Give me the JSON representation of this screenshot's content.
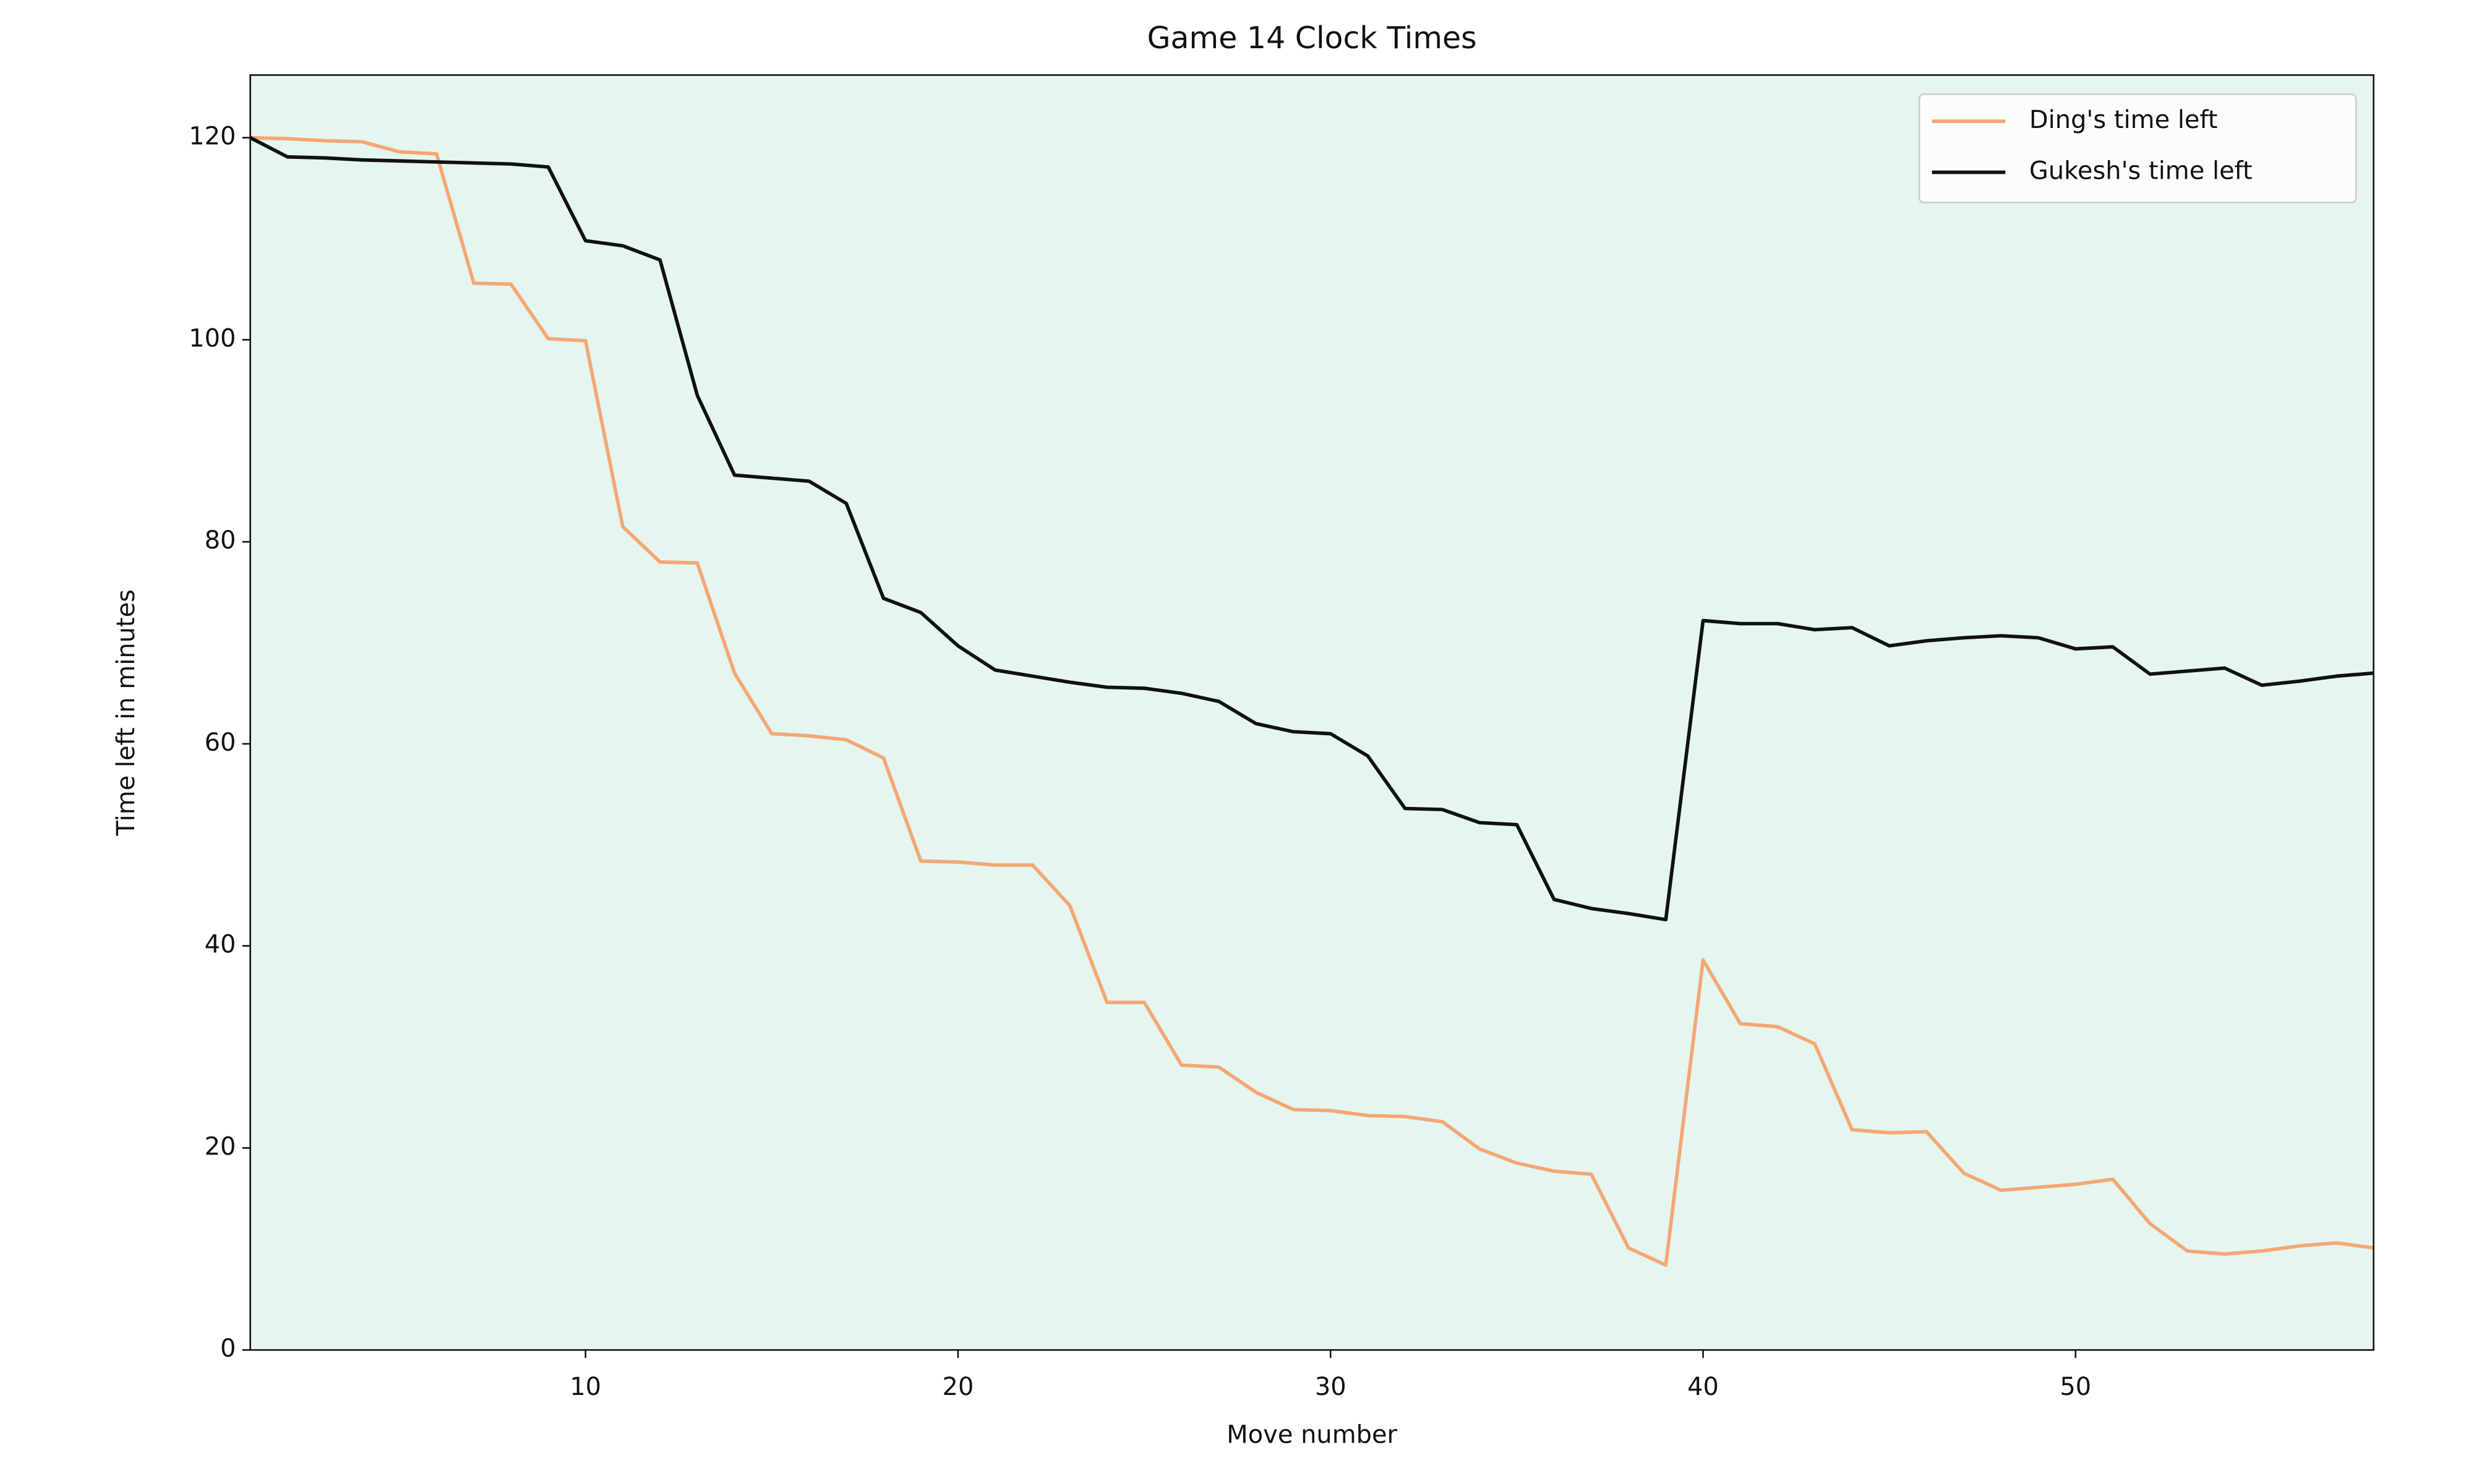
{
  "chart_data": {
    "type": "line",
    "title": "Game 14 Clock Times",
    "x_label": "Move number",
    "y_label": "Time left in minutes",
    "x": [
      1,
      2,
      3,
      4,
      5,
      6,
      7,
      8,
      9,
      10,
      11,
      12,
      13,
      14,
      15,
      16,
      17,
      18,
      19,
      20,
      21,
      22,
      23,
      24,
      25,
      26,
      27,
      28,
      29,
      30,
      31,
      32,
      33,
      34,
      35,
      36,
      37,
      38,
      39,
      40,
      41,
      42,
      43,
      44,
      45,
      46,
      47,
      48,
      49,
      50,
      51,
      52,
      53,
      54,
      55,
      56,
      57,
      58
    ],
    "series": [
      {
        "name": "Ding's time left",
        "color": "#f4a773",
        "values": [
          120,
          119.9,
          119.7,
          119.6,
          118.6,
          118.4,
          105.6,
          105.5,
          100.1,
          99.9,
          81.5,
          78,
          77.9,
          67,
          61,
          60.8,
          60.4,
          58.6,
          48.4,
          48.3,
          48,
          48,
          44,
          34.4,
          34.4,
          28.2,
          28,
          25.5,
          23.8,
          23.7,
          23.2,
          23.1,
          22.6,
          19.9,
          18.5,
          17.7,
          17.4,
          10.1,
          8.4,
          38.6,
          32.3,
          32,
          30.3,
          21.8,
          21.5,
          21.6,
          17.5,
          15.8,
          16.1,
          16.4,
          16.9,
          12.5,
          9.8,
          9.5,
          9.8,
          10.3,
          10.6,
          10.1
        ]
      },
      {
        "name": "Gukesh's time left",
        "color": "#111111",
        "values": [
          120,
          118.1,
          118,
          117.8,
          117.7,
          117.6,
          117.5,
          117.4,
          117.1,
          109.8,
          109.3,
          107.9,
          94.5,
          86.6,
          86.3,
          86,
          83.8,
          74.4,
          73,
          69.7,
          67.3,
          66.7,
          66.1,
          65.6,
          65.5,
          65,
          64.2,
          62,
          61.2,
          61,
          58.8,
          53.6,
          53.5,
          52.2,
          52,
          44.6,
          43.7,
          43.2,
          42.6,
          72.2,
          71.9,
          71.9,
          71.3,
          71.5,
          69.7,
          70.2,
          70.5,
          70.7,
          70.5,
          69.4,
          69.6,
          66.9,
          67.2,
          67.5,
          65.8,
          66.2,
          66.7,
          67
        ]
      }
    ],
    "xlim": [
      1,
      58
    ],
    "ylim": [
      0,
      126.2
    ],
    "xticks": [
      10,
      20,
      30,
      40,
      50
    ],
    "yticks": [
      0,
      20,
      40,
      60,
      80,
      100,
      120
    ],
    "background": "#e5f5ef",
    "legend": "upper right"
  }
}
